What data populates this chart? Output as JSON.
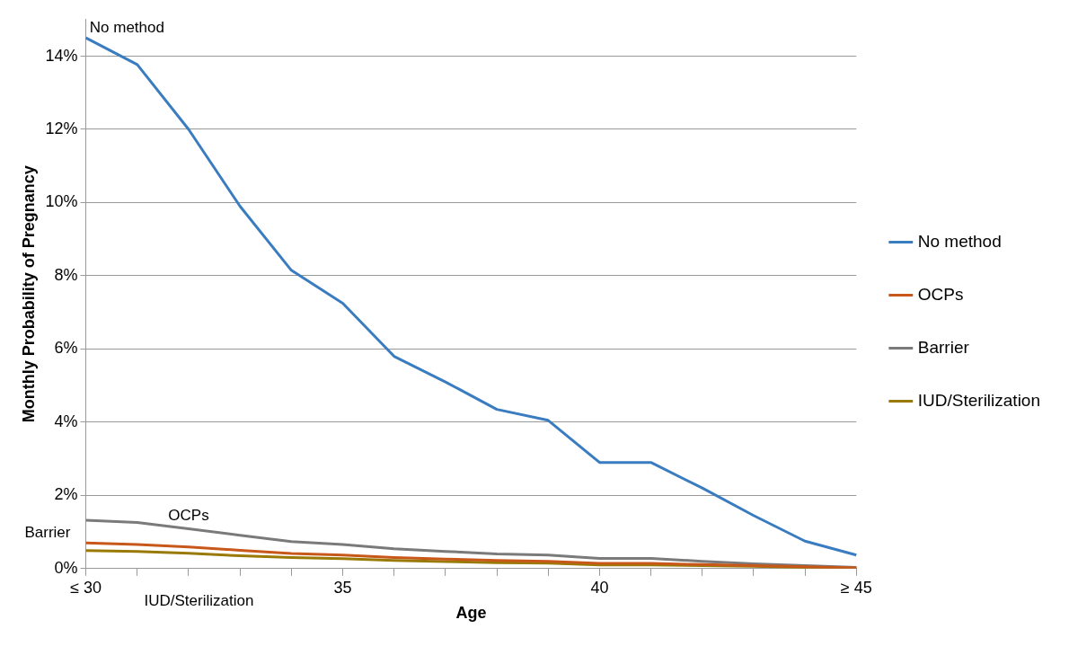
{
  "chart_data": {
    "type": "line",
    "xlabel": "Age",
    "ylabel": "Monthly Probability of Pregnancy",
    "categories": [
      "≤ 30",
      null,
      null,
      null,
      null,
      "35",
      null,
      null,
      null,
      null,
      "40",
      null,
      null,
      null,
      null,
      "≥ 45"
    ],
    "series": [
      {
        "name": "No method",
        "color": "#3a7cc0",
        "values": [
          14.5,
          13.77,
          12.0,
          9.9,
          8.15,
          7.25,
          5.8,
          5.1,
          4.35,
          4.05,
          2.9,
          2.9,
          2.2,
          1.45,
          0.75,
          0.37
        ]
      },
      {
        "name": "OCPs",
        "color": "#c8581a",
        "values": [
          0.7,
          0.66,
          0.59,
          0.5,
          0.41,
          0.37,
          0.3,
          0.26,
          0.22,
          0.2,
          0.14,
          0.14,
          0.11,
          0.08,
          0.05,
          0.02
        ]
      },
      {
        "name": "Barrier",
        "color": "#7a7a7a",
        "values": [
          1.32,
          1.26,
          1.09,
          0.91,
          0.74,
          0.66,
          0.54,
          0.47,
          0.4,
          0.37,
          0.28,
          0.28,
          0.2,
          0.13,
          0.08,
          0.03
        ]
      },
      {
        "name": "IUD/Sterilization",
        "color": "#9a7a06",
        "values": [
          0.49,
          0.47,
          0.42,
          0.35,
          0.3,
          0.27,
          0.22,
          0.19,
          0.16,
          0.15,
          0.1,
          0.1,
          0.08,
          0.06,
          0.03,
          0.02
        ]
      }
    ],
    "ylim": [
      0,
      15
    ],
    "yticks": [
      {
        "value": 0,
        "label": "0%"
      },
      {
        "value": 2,
        "label": "2%"
      },
      {
        "value": 4,
        "label": "4%"
      },
      {
        "value": 6,
        "label": "6%"
      },
      {
        "value": 8,
        "label": "8%"
      },
      {
        "value": 10,
        "label": "10%"
      },
      {
        "value": 12,
        "label": "12%"
      },
      {
        "value": 14,
        "label": "14%"
      }
    ],
    "annotations": [
      "No method",
      "OCPs",
      "Barrier",
      "IUD/Sterilization"
    ],
    "grid": "y",
    "legend": "right",
    "marker": "none",
    "line_style": "solid"
  }
}
